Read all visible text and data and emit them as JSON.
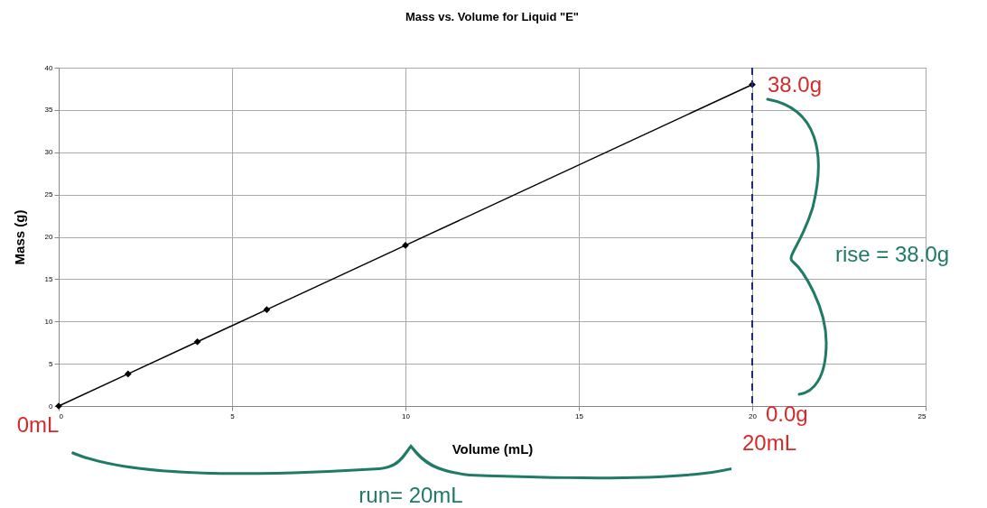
{
  "chart_data": {
    "type": "line",
    "title": "Mass vs. Volume for Liquid \"E\"",
    "xlabel": "Volume (mL)",
    "ylabel": "Mass (g)",
    "x": [
      0,
      2,
      4,
      6,
      10,
      20
    ],
    "series": [
      {
        "color": "#000000",
        "values": [
          0,
          3.8,
          7.6,
          11.4,
          19,
          38
        ]
      }
    ],
    "xlim": [
      0,
      25
    ],
    "xticks": [
      0,
      5,
      10,
      15,
      20,
      25
    ],
    "ylim": [
      0,
      40
    ],
    "yticks": [
      0,
      5,
      10,
      15,
      20,
      25,
      30,
      35,
      40
    ],
    "grid": true,
    "marker": "diamond",
    "line_style": "solid",
    "ref_lines": [
      {
        "axis": "x",
        "value": 20,
        "label": null,
        "color": "#1f2a80",
        "line_style": "dashed"
      }
    ],
    "annotations": [
      "38.0g",
      "0.0g",
      "0mL",
      "20mL",
      "rise = 38.0g",
      "run= 20mL"
    ]
  }
}
